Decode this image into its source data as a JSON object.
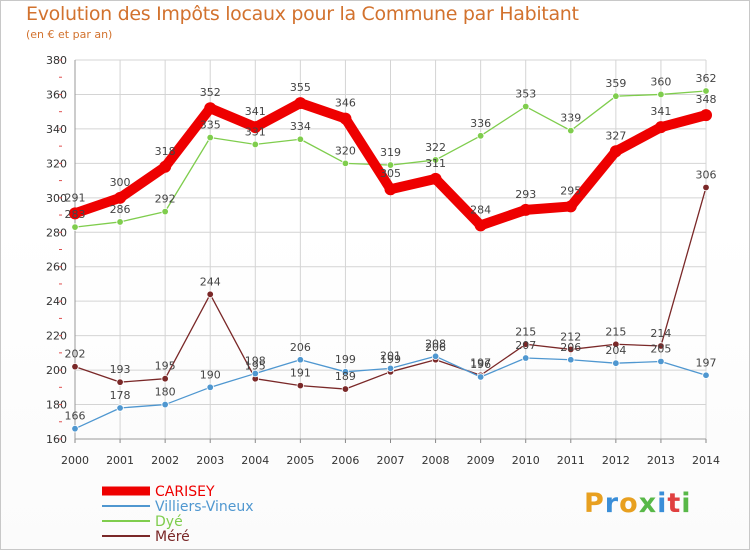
{
  "title": "Evolution des Impôts locaux pour la Commune par Habitant",
  "subtitle": "(en € et par an)",
  "logo": {
    "text": "Proxiti",
    "colors": [
      "#e8a020",
      "#3a8ed8",
      "#e8a020",
      "#58b848",
      "#3a8ed8",
      "#e04040",
      "#58b848"
    ]
  },
  "chart_data": {
    "type": "line",
    "x": [
      "2000",
      "2001",
      "2002",
      "2003",
      "2004",
      "2005",
      "2006",
      "2007",
      "2008",
      "2009",
      "2010",
      "2011",
      "2012",
      "2013",
      "2014"
    ],
    "ylim": [
      160,
      380
    ],
    "yticks": [
      "160",
      "180",
      "200",
      "220",
      "240",
      "260",
      "280",
      "300",
      "320",
      "340",
      "360",
      "380"
    ],
    "grid": true,
    "legend_position": "bottom-left",
    "series": [
      {
        "name": "CARISEY",
        "color": "#ee0000",
        "values": [
          291,
          300,
          318,
          352,
          341,
          355,
          346,
          305,
          311,
          284,
          293,
          295,
          327,
          341,
          348
        ]
      },
      {
        "name": "Villiers-Vineux",
        "color": "#4f97d0",
        "values": [
          166,
          178,
          180,
          190,
          198,
          206,
          199,
          201,
          208,
          196,
          207,
          206,
          204,
          205,
          197
        ]
      },
      {
        "name": "Dyé",
        "color": "#7fcd4d",
        "values": [
          283,
          286,
          292,
          335,
          331,
          334,
          320,
          319,
          322,
          336,
          353,
          339,
          359,
          360,
          362
        ]
      },
      {
        "name": "Méré",
        "color": "#7a2828",
        "values": [
          202,
          193,
          195,
          244,
          195,
          191,
          189,
          199,
          206,
          197,
          215,
          212,
          215,
          214,
          306
        ]
      }
    ]
  }
}
